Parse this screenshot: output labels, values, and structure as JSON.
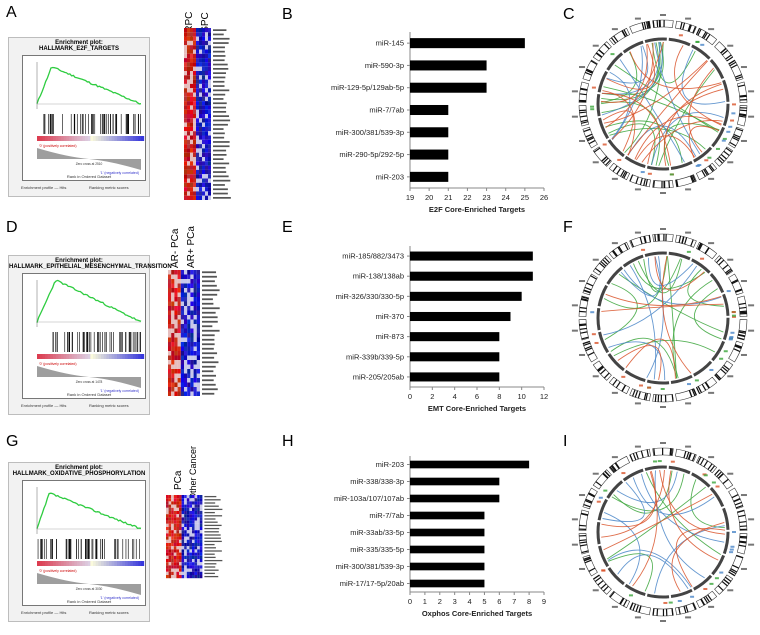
{
  "panels": {
    "A": "A",
    "B": "B",
    "C": "C",
    "D": "D",
    "E": "E",
    "F": "F",
    "G": "G",
    "H": "H",
    "I": "I"
  },
  "gsea": [
    {
      "header": "Enrichment plot:",
      "title": "HALLMARK_E2F_TARGETS",
      "legend_left": "Enrichment profile — Hits",
      "legend_right": "Ranking metric scores",
      "xlabel": "Rank in Ordered Dataset",
      "pos_label": "'0' (positively correlated)",
      "neg_label": "'1' (negatively correlated)",
      "zero": "Zero cross at 2510"
    },
    {
      "header": "Enrichment plot:",
      "title": "HALLMARK_EPITHELIAL_MESENCHYMAL_TRANSITION",
      "legend_left": "Enrichment profile — Hits",
      "legend_right": "Ranking metric scores",
      "xlabel": "Rank in Ordered Dataset",
      "pos_label": "'0' (positively correlated)",
      "neg_label": "'1' (negatively correlated)",
      "zero": "Zero cross at 1478"
    },
    {
      "header": "Enrichment plot:",
      "title": "HALLMARK_OXIDATIVE_PHOSPHORYLATION",
      "legend_left": "Enrichment profile — Hits",
      "legend_right": "Ranking metric scores",
      "xlabel": "Rank in Ordered Dataset",
      "pos_label": "'0' (positively correlated)",
      "neg_label": "'1' (negatively correlated)",
      "zero": "Zero cross at 3030"
    }
  ],
  "heatmaps": [
    {
      "labels": [
        "CRPC",
        "CSPC"
      ]
    },
    {
      "labels": [
        "AR- PCa",
        "AR+ PCa"
      ]
    },
    {
      "labels": [
        "PCa",
        "Other Cancer"
      ]
    }
  ],
  "chart_data": [
    {
      "type": "bar",
      "orientation": "horizontal",
      "categories": [
        "miR-145",
        "miR-590-3p",
        "miR-129-5p/129ab-5p",
        "miR-7/7ab",
        "miR-300/381/539-3p",
        "miR-290-5p/292-5p",
        "miR-203"
      ],
      "values": [
        25,
        23,
        23,
        21,
        21,
        21,
        21
      ],
      "xlabel": "E2F Core-Enriched Targets",
      "xlim": [
        19,
        26
      ],
      "ticks": [
        19,
        20,
        21,
        22,
        23,
        24,
        25,
        26
      ]
    },
    {
      "type": "bar",
      "orientation": "horizontal",
      "categories": [
        "miR-185/882/3473",
        "miR-138/138ab",
        "miR-326/330/330-5p",
        "miR-370",
        "miR-873",
        "miR-339b/339-5p",
        "miR-205/205ab"
      ],
      "values": [
        11,
        11,
        10,
        9,
        8,
        8,
        8
      ],
      "xlabel": "EMT Core-Enriched Targets",
      "xlim": [
        0,
        12
      ],
      "ticks": [
        0,
        2,
        4,
        6,
        8,
        10,
        12
      ]
    },
    {
      "type": "bar",
      "orientation": "horizontal",
      "categories": [
        "miR-203",
        "miR-338/338-3p",
        "miR-103a/107/107ab",
        "miR-7/7ab",
        "miR-33ab/33-5p",
        "miR-335/335-5p",
        "miR-300/381/539-3p",
        "miR-17/17-5p/20ab"
      ],
      "values": [
        8,
        6,
        6,
        5,
        5,
        5,
        5,
        5
      ],
      "xlabel": "Oxphos Core-Enriched Targets",
      "xlim": [
        0,
        9
      ],
      "ticks": [
        0,
        1,
        2,
        3,
        4,
        5,
        6,
        7,
        8,
        9
      ]
    }
  ],
  "colors": {
    "bar": "#000000",
    "es_curve": "#2ecc40",
    "heat_red": "#b2182b",
    "heat_blue": "#2c2c9e",
    "link_red": "#d9542a",
    "link_green": "#3aa53a",
    "link_blue": "#4a86c8"
  }
}
